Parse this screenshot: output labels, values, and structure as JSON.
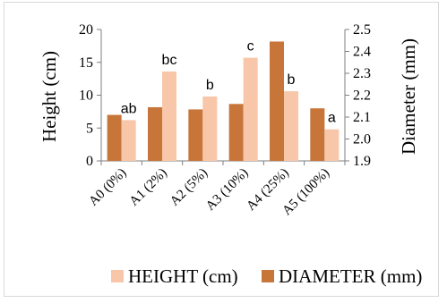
{
  "chart_data": {
    "type": "bar",
    "categories": [
      "A0 (0%)",
      "A1 (2%)",
      "A2 (5%)",
      "A3 (10%)",
      "A4 (25%)",
      "A5 (100%)"
    ],
    "series": [
      {
        "name": "DIAMETER (mm)",
        "axis": "right",
        "color": "#c8753a",
        "values": [
          2.11,
          2.145,
          2.135,
          2.16,
          2.445,
          2.14
        ]
      },
      {
        "name": "HEIGHT (cm)",
        "axis": "left",
        "color": "#f8c6a8",
        "values": [
          6.2,
          13.6,
          9.8,
          15.7,
          10.6,
          4.8
        ]
      }
    ],
    "significance_labels": [
      "ab",
      "bc",
      "b",
      "c",
      "b",
      "a"
    ],
    "ylabel": "Height (cm)",
    "y2label": "Diameter (mm)",
    "ylim": [
      0,
      20
    ],
    "y2lim": [
      1.9,
      2.5
    ],
    "yticks": [
      "0",
      "5",
      "10",
      "15",
      "20"
    ],
    "y2ticks": [
      "1.9",
      "2.0",
      "2.1",
      "2.2",
      "2.3",
      "2.4",
      "2.5"
    ],
    "legend_position": "bottom",
    "grid": false
  }
}
